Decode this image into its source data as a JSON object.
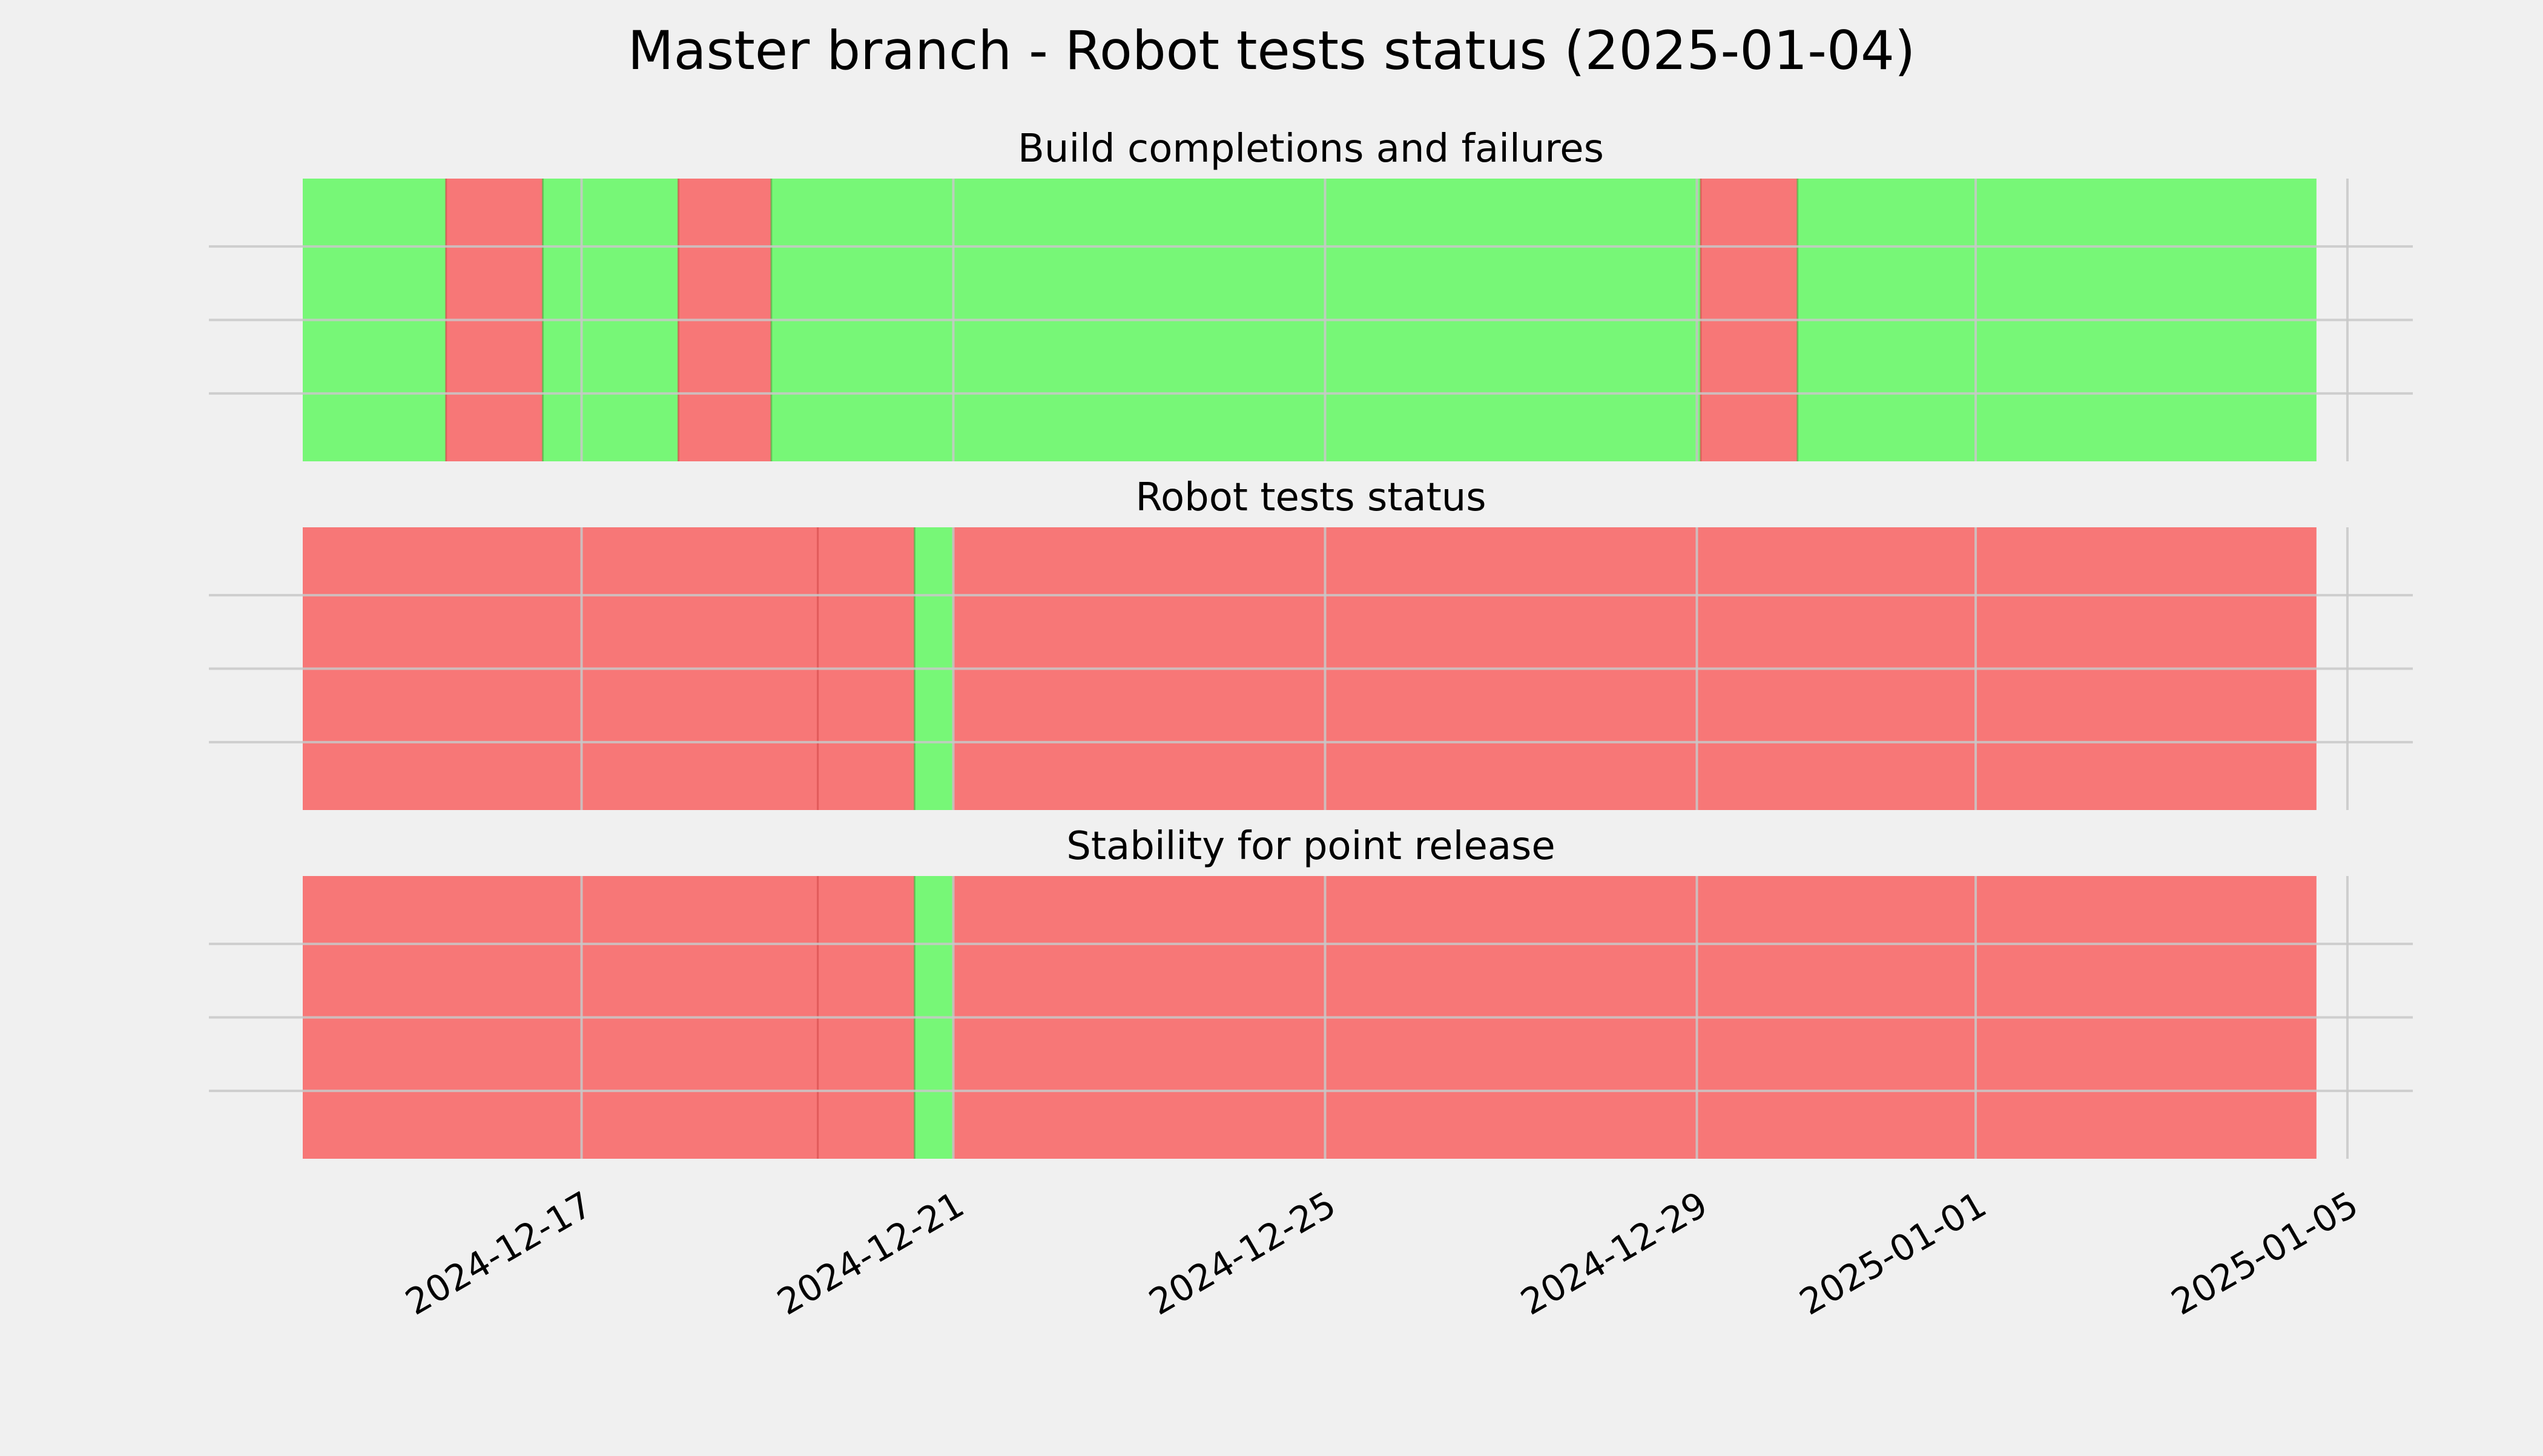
{
  "chart_data": {
    "type": "timeline",
    "title": "Master branch - Robot tests status (2025-01-04)",
    "x_range": [
      "2024-12-14",
      "2025-01-05"
    ],
    "x_ticks": [
      "2024-12-17",
      "2024-12-21",
      "2024-12-25",
      "2024-12-29",
      "2025-01-01",
      "2025-01-05"
    ],
    "grid": true,
    "colors": {
      "success": "#77f777",
      "failure": "#f77777",
      "background": "#f0f0f0",
      "grid": "#c8c8c8"
    },
    "panels": [
      {
        "title": "Build completions and failures",
        "segments": [
          {
            "start": "2024-12-14 00:00",
            "end": "2024-12-15 13:00",
            "status": "success"
          },
          {
            "start": "2024-12-15 13:00",
            "end": "2024-12-16 14:00",
            "status": "failure"
          },
          {
            "start": "2024-12-16 14:00",
            "end": "2024-12-18 01:00",
            "status": "success"
          },
          {
            "start": "2024-12-18 01:00",
            "end": "2024-12-19 01:00",
            "status": "failure"
          },
          {
            "start": "2024-12-19 01:00",
            "end": "2024-12-29 00:00",
            "status": "success"
          },
          {
            "start": "2024-12-29 00:00",
            "end": "2024-12-29 01:00",
            "status": "success"
          },
          {
            "start": "2024-12-29 01:00",
            "end": "2024-12-30 02:00",
            "status": "failure"
          },
          {
            "start": "2024-12-30 02:00",
            "end": "2025-01-04 16:00",
            "status": "success"
          }
        ]
      },
      {
        "title": "Robot tests status",
        "segments": [
          {
            "start": "2024-12-14 00:00",
            "end": "2024-12-19 13:00",
            "status": "failure"
          },
          {
            "start": "2024-12-19 13:00",
            "end": "2024-12-20 14:00",
            "status": "failure"
          },
          {
            "start": "2024-12-20 14:00",
            "end": "2024-12-21 00:00",
            "status": "success"
          },
          {
            "start": "2024-12-21 00:00",
            "end": "2025-01-04 16:00",
            "status": "failure"
          }
        ]
      },
      {
        "title": "Stability for point release",
        "segments": [
          {
            "start": "2024-12-14 00:00",
            "end": "2024-12-19 13:00",
            "status": "failure"
          },
          {
            "start": "2024-12-19 13:00",
            "end": "2024-12-20 14:00",
            "status": "failure"
          },
          {
            "start": "2024-12-20 14:00",
            "end": "2024-12-21 00:00",
            "status": "success"
          },
          {
            "start": "2024-12-21 00:00",
            "end": "2025-01-04 16:00",
            "status": "failure"
          }
        ]
      }
    ]
  }
}
